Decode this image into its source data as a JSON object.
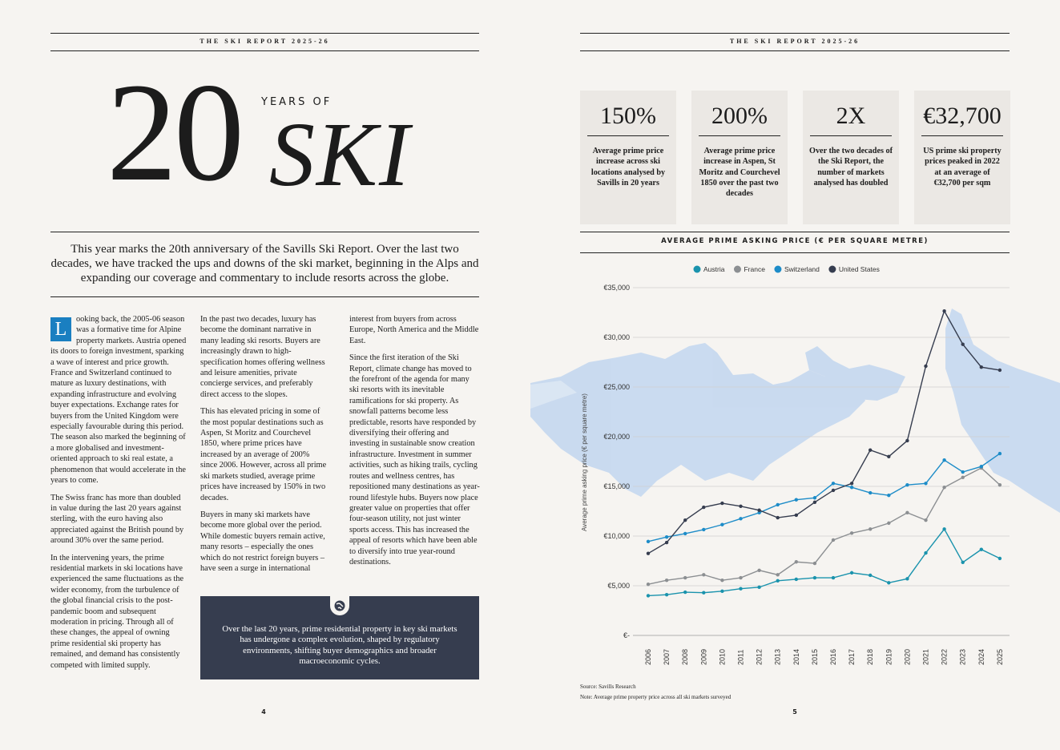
{
  "left_page": {
    "header": "THE SKI REPORT 2025-26",
    "title_number": "20",
    "title_kicker": "YEARS OF",
    "title_word": "SKI",
    "intro": "This year marks the 20th anniversary of the Savills Ski Report. Over the last two decades, we have tracked the ups and downs of the ski market, beginning in the Alps and expanding our coverage and commentary to include resorts across the globe.",
    "drop_cap": "L",
    "columns": [
      [
        "ooking back, the 2005-06 season was a formative time for Alpine property markets. Austria opened its doors to foreign investment, sparking a wave of interest and price growth. France and Switzerland continued to mature as luxury destinations, with expanding infrastructure and evolving buyer expectations. Exchange rates for buyers from the United Kingdom were especially favourable during this period. The season also marked the beginning of a more globalised and investment-oriented approach to ski real estate, a phenomenon that would accelerate in the years to come.",
        "The Swiss franc has more than doubled in value during the last 20 years against sterling, with the euro having also appreciated against the British pound by around 30% over the same period.",
        "In the intervening years, the prime residential markets in ski locations have experienced the same fluctuations as the wider economy, from the turbulence of the global financial crisis to the post-pandemic boom and subsequent moderation in pricing. Through all of these changes, the appeal of owning prime residential ski property has remained, and demand has consistently competed with limited supply."
      ],
      [
        "In the past two decades, luxury has become the dominant narrative in many leading ski resorts. Buyers are increasingly drawn to high-specification homes offering wellness and leisure amenities, private concierge services, and preferably direct access to the slopes.",
        "This has elevated pricing in some of the most popular destinations such as Aspen, St Moritz and Courchevel 1850, where prime prices have increased by an average of 200% since 2006. However, across all prime ski markets studied, average prime prices have increased by 150% in two decades.",
        "Buyers in many ski markets have become more global over the period. While domestic buyers remain active, many resorts – especially the ones which do not restrict foreign buyers – have seen a surge in international"
      ],
      [
        "interest from buyers from across Europe, North America and the Middle East.",
        "Since the first iteration of the Ski Report, climate change has moved to the forefront of the agenda for many ski resorts with its inevitable ramifications for ski property. As snowfall patterns become less predictable, resorts have responded by diversifying their offering and investing in sustainable snow creation infrastructure. Investment in summer activities, such as hiking trails, cycling routes and wellness centres, has repositioned many destinations as year-round lifestyle hubs. Buyers now place greater value on properties that offer four-season utility, not just winter sports access. This has increased the appeal of resorts which have been able to diversify into true year-round destinations."
      ]
    ],
    "callout": "Over the last 20 years, prime residential property in key ski markets has undergone a complex evolution, shaped by regulatory environments, shifting buyer demographics and broader macroeconomic cycles.",
    "page_number": "4"
  },
  "right_page": {
    "header": "THE SKI REPORT 2025-26",
    "stats": [
      {
        "value": "150%",
        "text": "Average prime price increase across ski locations analysed by Savills in 20 years"
      },
      {
        "value": "200%",
        "text": "Average prime price increase in Aspen, St Moritz and Courchevel 1850 over the past two decades"
      },
      {
        "value": "2X",
        "text": "Over the two decades of the Ski Report, the number of markets analysed has doubled"
      },
      {
        "value": "€32,700",
        "text": "US prime ski property prices peaked in 2022 at an average of €32,700 per sqm"
      }
    ],
    "source": "Source: Savills Research",
    "note": "Note: Average prime property price across all ski markets surveyed",
    "page_number": "5"
  },
  "chart_data": {
    "type": "line",
    "title": "AVERAGE PRIME ASKING PRICE (€ PER SQUARE METRE)",
    "y_label": "Average prime asking price (€ per square metre)",
    "categories": [
      "2006",
      "2007",
      "2008",
      "2009",
      "2010",
      "2011",
      "2012",
      "2013",
      "2014",
      "2015",
      "2016",
      "2017",
      "2018",
      "2019",
      "2020",
      "2021",
      "2022",
      "2023",
      "2024",
      "2025"
    ],
    "series": [
      {
        "name": "Austria",
        "color": "#1a93ad",
        "values": [
          4000,
          4100,
          4350,
          4300,
          4450,
          4700,
          4850,
          5500,
          5650,
          5800,
          5800,
          6300,
          6050,
          5300,
          5700,
          8300,
          10700,
          7350,
          8650,
          7750
        ]
      },
      {
        "name": "France",
        "color": "#8c8f92",
        "values": [
          5150,
          5550,
          5800,
          6100,
          5550,
          5800,
          6550,
          6100,
          7400,
          7250,
          9600,
          10300,
          10700,
          11300,
          12350,
          11600,
          14900,
          15900,
          16850,
          15150
        ]
      },
      {
        "name": "Switzerland",
        "color": "#1d8cc8",
        "values": [
          9450,
          9900,
          10250,
          10650,
          11150,
          11750,
          12350,
          13150,
          13650,
          13850,
          15300,
          14900,
          14350,
          14100,
          15150,
          15300,
          17650,
          16450,
          17000,
          18300
        ]
      },
      {
        "name": "United States",
        "color": "#363d4f",
        "values": [
          8250,
          9350,
          11600,
          12900,
          13300,
          13000,
          12600,
          11850,
          12100,
          13400,
          14600,
          15300,
          18650,
          18000,
          19600,
          27100,
          32650,
          29300,
          27000,
          26700
        ]
      }
    ],
    "ylim": [
      0,
      35000
    ],
    "yticks": [
      {
        "value": 0,
        "label": "€-"
      },
      {
        "value": 5000,
        "label": "€5,000"
      },
      {
        "value": 10000,
        "label": "€10,000"
      },
      {
        "value": 15000,
        "label": "€15,000"
      },
      {
        "value": 20000,
        "label": "€20,000"
      },
      {
        "value": 25000,
        "label": "€25,000"
      },
      {
        "value": 30000,
        "label": "€30,000"
      },
      {
        "value": 35000,
        "label": "€35,000"
      }
    ],
    "grid": true,
    "legend": "top"
  }
}
